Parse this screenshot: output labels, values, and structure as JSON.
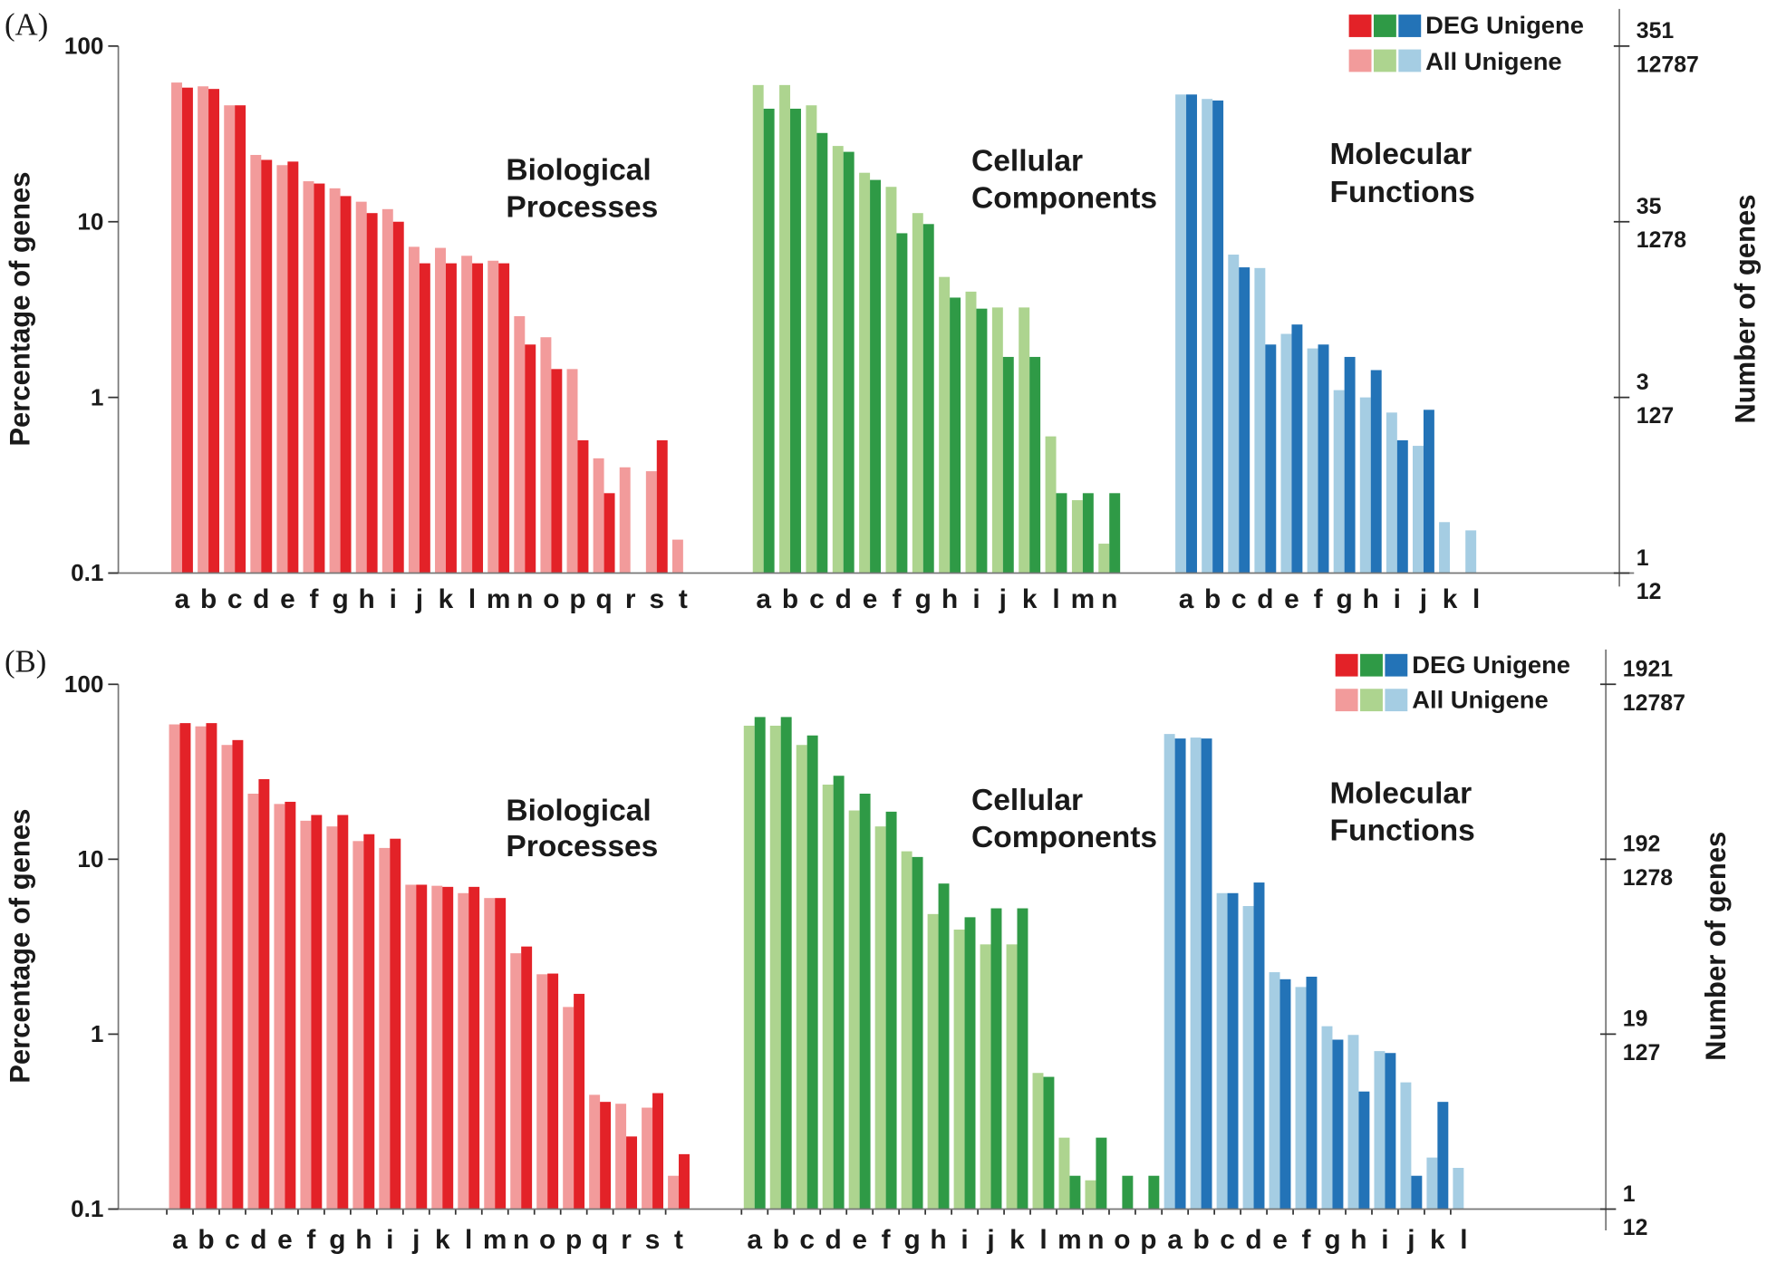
{
  "chart_data": [
    {
      "type": "bar",
      "panel_label": "(A)",
      "y_scale": "log",
      "ylim": [
        0.1,
        100
      ],
      "ylabel": "Percentage of genes",
      "y_ticks": [
        100,
        10,
        1,
        0.1
      ],
      "y2label": "Number of genes",
      "y2_ticks": [
        {
          "deg": "351",
          "all": "12787"
        },
        {
          "deg": "35",
          "all": "1278"
        },
        {
          "deg": "3",
          "all": "127"
        },
        {
          "deg": "1",
          "all": "12"
        }
      ],
      "legend": {
        "position": "top-right",
        "deg": "DEG Unigene",
        "all": "All Unigene"
      },
      "groups": [
        {
          "title": [
            "Biological",
            "Processes"
          ],
          "colors": {
            "deg": "#e32228",
            "all": "#f29b9b"
          },
          "categories": [
            "a",
            "b",
            "c",
            "d",
            "e",
            "f",
            "g",
            "h",
            "i",
            "j",
            "k",
            "l",
            "m",
            "n",
            "o",
            "p",
            "q",
            "r",
            "s",
            "t"
          ],
          "series": {
            "all": [
              62,
              59,
              46,
              24,
              21,
              17,
              15.5,
              13,
              11.8,
              7.2,
              7.1,
              6.4,
              6.0,
              2.9,
              2.2,
              1.45,
              0.45,
              0.4,
              0.38,
              0.155
            ],
            "deg": [
              58,
              57,
              46,
              22.5,
              22,
              16.5,
              14,
              11.2,
              10,
              5.8,
              5.8,
              5.8,
              5.8,
              2.0,
              1.45,
              0.57,
              0.285,
              null,
              0.57,
              null
            ]
          }
        },
        {
          "title": [
            "Cellular",
            "Components"
          ],
          "colors": {
            "deg": "#2f9a46",
            "all": "#add48f"
          },
          "categories": [
            "a",
            "b",
            "c",
            "d",
            "e",
            "f",
            "g",
            "h",
            "i",
            "j",
            "k",
            "l",
            "m",
            "n"
          ],
          "series": {
            "all": [
              60,
              60,
              46,
              27,
              19,
              15.8,
              11.2,
              4.85,
              4.0,
              3.25,
              3.25,
              0.6,
              0.26,
              0.147
            ],
            "deg": [
              44,
              44,
              32,
              25,
              17.3,
              8.6,
              9.7,
              3.7,
              3.2,
              1.7,
              1.7,
              0.285,
              0.285,
              0.285
            ]
          }
        },
        {
          "title": [
            "Molecular",
            "Functions"
          ],
          "colors": {
            "deg": "#2373b7",
            "all": "#a5cde3"
          },
          "categories": [
            "a",
            "b",
            "c",
            "d",
            "e",
            "f",
            "g",
            "h",
            "i",
            "j",
            "k",
            "l"
          ],
          "series": {
            "all": [
              53,
              50,
              6.5,
              5.45,
              2.3,
              1.9,
              1.1,
              1.0,
              0.82,
              0.53,
              0.195,
              0.175
            ],
            "deg": [
              53,
              49,
              5.5,
              2.0,
              2.6,
              2.0,
              1.7,
              1.43,
              0.57,
              0.85,
              null,
              null
            ]
          }
        }
      ]
    },
    {
      "type": "bar",
      "panel_label": "(B)",
      "y_scale": "log",
      "ylim": [
        0.1,
        100
      ],
      "ylabel": "Percentage of genes",
      "y_ticks": [
        100,
        10,
        1,
        0.1
      ],
      "y2label": "Number of genes",
      "y2_ticks": [
        {
          "deg": "1921",
          "all": "12787"
        },
        {
          "deg": "192",
          "all": "1278"
        },
        {
          "deg": "19",
          "all": "127"
        },
        {
          "deg": "1",
          "all": "12"
        }
      ],
      "legend": {
        "position": "top-right",
        "deg": "DEG Unigene",
        "all": "All Unigene"
      },
      "groups": [
        {
          "title": [
            "Biological",
            "Processes"
          ],
          "colors": {
            "deg": "#e32228",
            "all": "#f29b9b"
          },
          "categories": [
            "a",
            "b",
            "c",
            "d",
            "e",
            "f",
            "g",
            "h",
            "i",
            "j",
            "k",
            "l",
            "m",
            "n",
            "o",
            "p",
            "q",
            "r",
            "s",
            "t"
          ],
          "series": {
            "all": [
              59,
              57.5,
              45,
              23.7,
              20.7,
              16.6,
              15.4,
              12.7,
              11.6,
              7.15,
              7.05,
              6.4,
              6.0,
              2.9,
              2.2,
              1.43,
              0.45,
              0.4,
              0.38,
              0.155
            ],
            "deg": [
              60,
              60,
              48,
              28.7,
              21.3,
              17.9,
              17.9,
              13.9,
              13.1,
              7.15,
              6.95,
              6.95,
              6.0,
              3.17,
              2.22,
              1.7,
              0.41,
              0.26,
              0.46,
              0.206
            ]
          }
        },
        {
          "title": [
            "Cellular",
            "Components"
          ],
          "colors": {
            "deg": "#2f9a46",
            "all": "#add48f"
          },
          "categories": [
            "a",
            "b",
            "c",
            "d",
            "e",
            "f",
            "g",
            "h",
            "i",
            "j",
            "k",
            "l",
            "m",
            "n",
            "o",
            "p"
          ],
          "series": {
            "all": [
              58,
              58,
              45,
              26.7,
              19,
              15.4,
              11.1,
              4.86,
              3.96,
              3.26,
              3.26,
              0.6,
              0.256,
              0.146,
              null,
              null
            ],
            "deg": [
              65,
              65,
              51,
              30,
              23.7,
              18.7,
              10.3,
              7.26,
              4.66,
              5.24,
              5.24,
              0.57,
              0.155,
              0.256,
              0.155,
              0.155
            ]
          }
        },
        {
          "title": [
            "Molecular",
            "Functions"
          ],
          "colors": {
            "deg": "#2373b7",
            "all": "#a5cde3"
          },
          "categories": [
            "a",
            "b",
            "c",
            "d",
            "e",
            "f",
            "g",
            "h",
            "i",
            "j",
            "k",
            "l"
          ],
          "series": {
            "all": [
              52,
              49.6,
              6.4,
              5.4,
              2.26,
              1.86,
              1.11,
              0.99,
              0.8,
              0.53,
              0.197,
              0.172
            ],
            "deg": [
              49,
              49,
              6.4,
              7.36,
              2.06,
              2.13,
              0.93,
              0.47,
              0.78,
              0.155,
              0.41,
              null
            ]
          }
        }
      ]
    }
  ]
}
